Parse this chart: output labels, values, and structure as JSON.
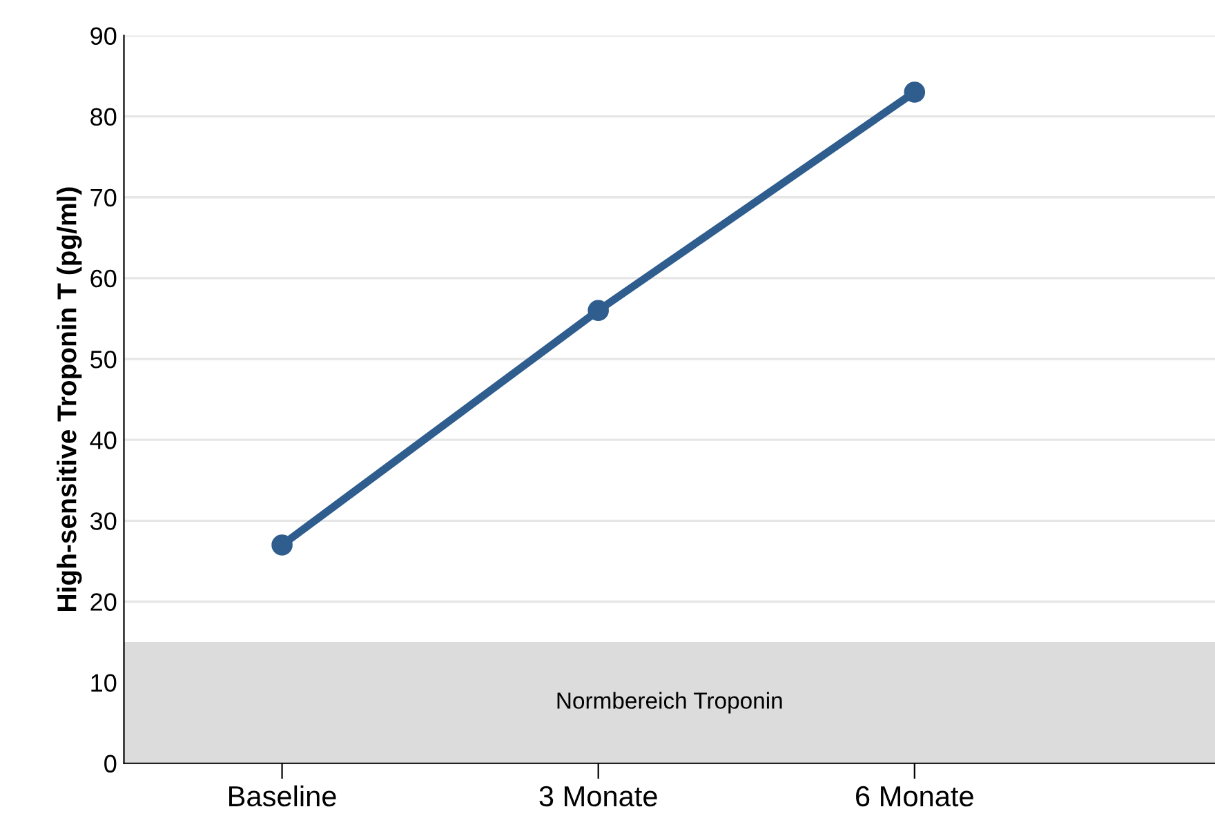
{
  "chart_data": {
    "type": "line",
    "ylabel": "High-sensitive Troponin T (pg/ml)",
    "categories": [
      "Baseline",
      "3 Monate",
      "6 Monate"
    ],
    "series": [
      {
        "color": "#2f5d8e",
        "values": [
          27,
          56,
          83
        ]
      }
    ],
    "ylim": [
      0,
      90
    ],
    "yticks": [
      0,
      10,
      20,
      30,
      40,
      50,
      60,
      70,
      80,
      90
    ],
    "grid": "y",
    "marker": "circle",
    "line_style": "solid",
    "bands": [
      {
        "axis": "y",
        "from": 0,
        "to": 15,
        "label": "Normbereich Troponin",
        "color": "#dcdcdc"
      }
    ]
  }
}
